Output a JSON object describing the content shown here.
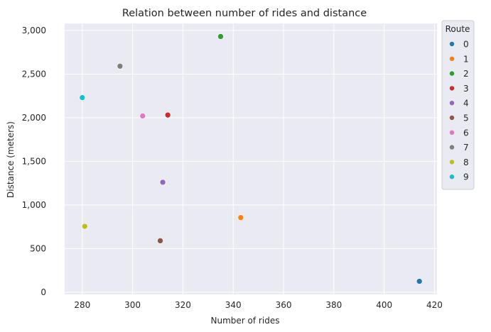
{
  "chart_data": {
    "type": "scatter",
    "title": "Relation between number of rides and distance",
    "xlabel": "Number of rides",
    "ylabel": "Distance (meters)",
    "xlim": [
      273,
      421
    ],
    "ylim": [
      -25,
      3080
    ],
    "xticks": [
      280,
      300,
      320,
      340,
      360,
      380,
      400,
      420
    ],
    "xtick_labels": [
      "280",
      "300",
      "320",
      "340",
      "360",
      "380",
      "400",
      "420"
    ],
    "yticks": [
      0,
      500,
      1000,
      1500,
      2000,
      2500,
      3000
    ],
    "ytick_labels": [
      "0",
      "500",
      "1,000",
      "1,500",
      "2,000",
      "2,500",
      "3,000"
    ],
    "grid": true,
    "legend": {
      "title": "Route",
      "placement": "outside-top-right"
    },
    "series": [
      {
        "name": "0",
        "color": "#1f77b4",
        "points": [
          {
            "x": 414,
            "y": 125
          }
        ]
      },
      {
        "name": "1",
        "color": "#ff7f0e",
        "points": [
          {
            "x": 343,
            "y": 855
          }
        ]
      },
      {
        "name": "2",
        "color": "#2ca02c",
        "points": [
          {
            "x": 335,
            "y": 2930
          }
        ]
      },
      {
        "name": "3",
        "color": "#d62728",
        "points": [
          {
            "x": 314,
            "y": 2030
          }
        ]
      },
      {
        "name": "4",
        "color": "#9467bd",
        "points": [
          {
            "x": 312,
            "y": 1260
          }
        ]
      },
      {
        "name": "5",
        "color": "#8c564b",
        "points": [
          {
            "x": 311,
            "y": 590
          }
        ]
      },
      {
        "name": "6",
        "color": "#e377c2",
        "points": [
          {
            "x": 304,
            "y": 2020
          }
        ]
      },
      {
        "name": "7",
        "color": "#7f7f7f",
        "points": [
          {
            "x": 295,
            "y": 2590
          }
        ]
      },
      {
        "name": "8",
        "color": "#bcbd22",
        "points": [
          {
            "x": 281,
            "y": 755
          }
        ]
      },
      {
        "name": "9",
        "color": "#17becf",
        "points": [
          {
            "x": 280,
            "y": 2230
          }
        ]
      }
    ]
  }
}
